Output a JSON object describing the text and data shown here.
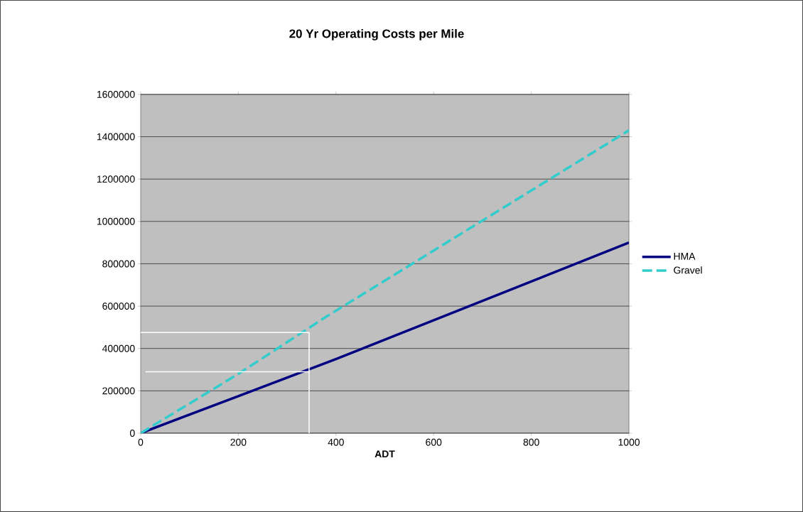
{
  "chart_data": {
    "type": "line",
    "title": "20 Yr Operating Costs per Mile",
    "xlabel": "ADT",
    "xlim": [
      0,
      1000
    ],
    "xticks": [
      0,
      200,
      400,
      600,
      800,
      1000
    ],
    "ylim": [
      0,
      1600000
    ],
    "yticks": [
      0,
      200000,
      400000,
      600000,
      800000,
      1000000,
      1200000,
      1400000,
      1600000
    ],
    "grid": "y",
    "legend": "right",
    "marker": "none",
    "series": [
      {
        "name": "HMA",
        "color": "#000080",
        "line_style": "solid",
        "x": [
          0,
          200,
          400,
          1000
        ],
        "values": [
          0,
          175000,
          350000,
          900000
        ]
      },
      {
        "name": "Gravel",
        "color": "#33cccc",
        "line_style": "dashed",
        "x": [
          0,
          200,
          380,
          1000
        ],
        "values": [
          0,
          280000,
          550000,
          1430000
        ]
      },
      {
        "color": "#ffffff",
        "line_style": "solid",
        "x": [
          0,
          345,
          345
        ],
        "values": [
          475000,
          475000,
          0
        ]
      },
      {
        "color": "#ffffff",
        "line_style": "solid",
        "x": [
          10,
          345
        ],
        "values": [
          290000,
          290000
        ]
      }
    ]
  }
}
